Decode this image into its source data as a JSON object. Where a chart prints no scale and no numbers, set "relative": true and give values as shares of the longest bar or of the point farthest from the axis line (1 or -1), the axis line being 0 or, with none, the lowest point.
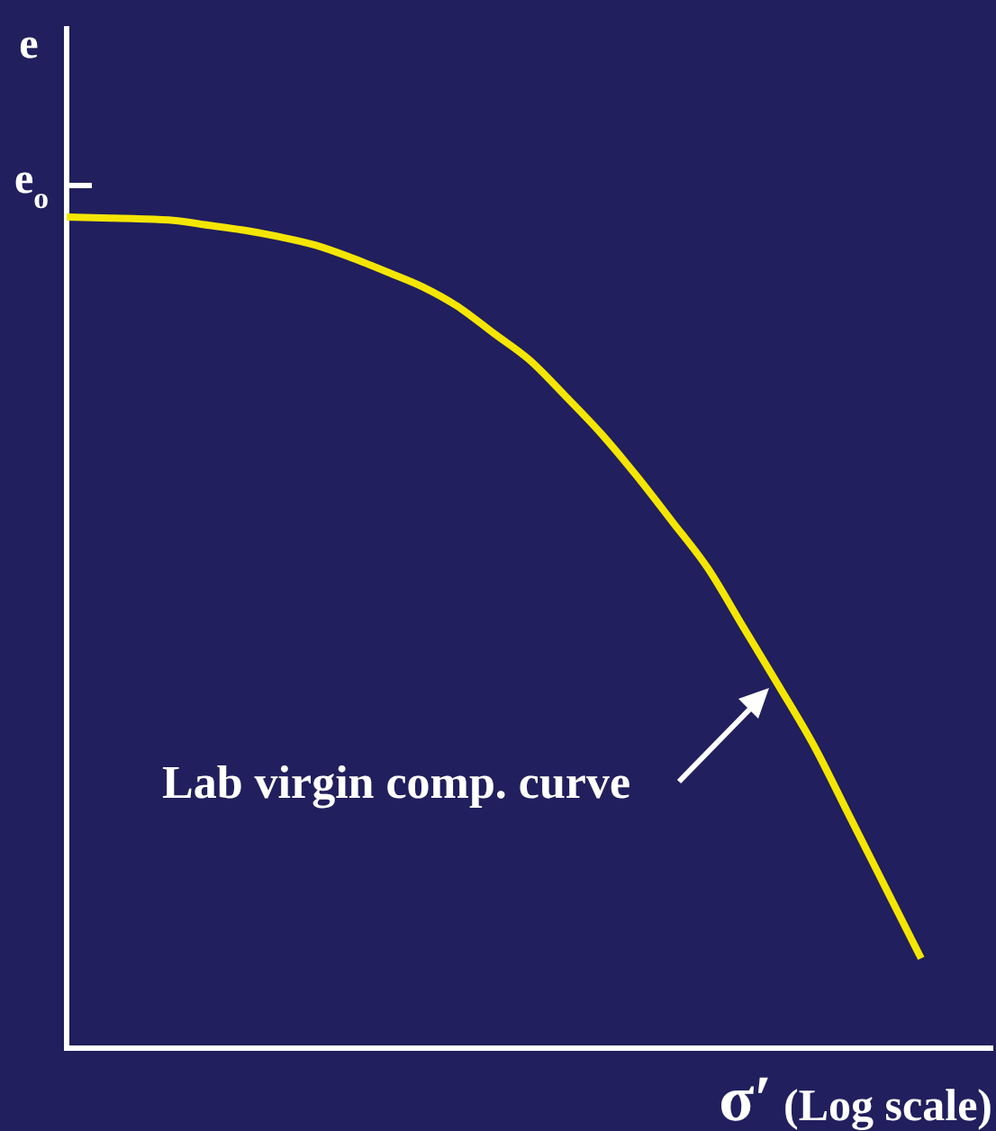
{
  "chart_data": {
    "type": "line",
    "relative": true,
    "xlabel": "σ′ (Log scale)",
    "ylabel": "e",
    "annotations": [
      "e$_{o}$",
      "Lab virgin comp. curve"
    ],
    "categories": [
      null,
      null,
      null,
      null,
      null,
      null,
      null,
      null,
      null,
      null,
      null,
      null,
      null,
      null,
      null,
      null,
      null,
      null,
      null,
      null,
      null,
      null,
      null,
      null,
      null,
      null,
      null
    ],
    "values": [
      1,
      0.999,
      0.998,
      0.996,
      0.99,
      0.984,
      0.976,
      0.966,
      0.951,
      0.934,
      0.916,
      0.892,
      0.86,
      0.828,
      0.785,
      0.74,
      0.689,
      0.634,
      0.578,
      0.507,
      0.436,
      0.363,
      0.278,
      0.193,
      0.108,
      null,
      null
    ],
    "color": "#f4e600",
    "marker": "none"
  }
}
